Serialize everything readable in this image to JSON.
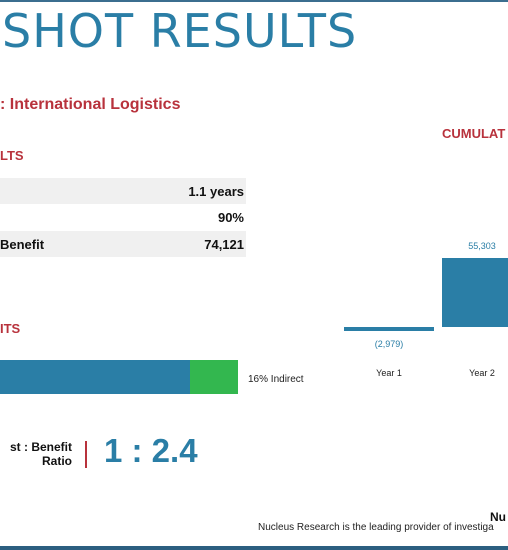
{
  "title": "SHOT RESULTS",
  "subtitle": ": International Logistics",
  "results": {
    "heading": "LTS",
    "rows": [
      {
        "label": "",
        "value": "1.1 years"
      },
      {
        "label": "",
        "value": "90%"
      },
      {
        "label": "Benefit",
        "value": "74,121"
      }
    ]
  },
  "benefits": {
    "heading": "ITS",
    "indirect_label": "16% Indirect",
    "indirect_share": 0.16
  },
  "ratio": {
    "label_line1": "st : Benefit",
    "label_line2": "Ratio",
    "value": "1 : 2.4"
  },
  "cumulative": {
    "heading": "CUMULAT"
  },
  "chart_data": {
    "type": "bar",
    "title": "CUMULAT",
    "categories": [
      "Year 1",
      "Year 2"
    ],
    "values": [
      -2979,
      55303
    ],
    "value_labels": [
      "(2,979)",
      "55,303"
    ]
  },
  "footer": {
    "name": "Nu",
    "text": "Nucleus Research is the leading provider of investiga"
  },
  "colors": {
    "accent_blue": "#2a7ea6",
    "accent_red": "#b8323c",
    "accent_green": "#33b74f"
  }
}
